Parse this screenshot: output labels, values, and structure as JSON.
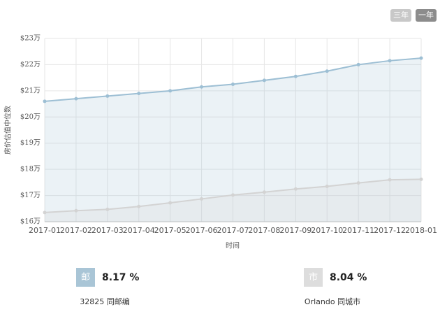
{
  "chart_data": {
    "type": "area",
    "ylabel": "房价估值中位数",
    "xlabel": "时间",
    "categories": [
      "2017-01",
      "2017-02",
      "2017-03",
      "2017-04",
      "2017-05",
      "2017-06",
      "2017-07",
      "2017-08",
      "2017-09",
      "2017-10",
      "2017-11",
      "2017-12",
      "2018-01"
    ],
    "series": [
      {
        "name": "32825 同邮编",
        "color": "#9dbfd4",
        "values": [
          20.6,
          20.7,
          20.8,
          20.9,
          21.0,
          21.15,
          21.25,
          21.4,
          21.55,
          21.75,
          22.0,
          22.15,
          22.25
        ]
      },
      {
        "name": "Orlando 同城市",
        "color": "#d3d3d3",
        "values": [
          16.35,
          16.42,
          16.47,
          16.58,
          16.72,
          16.87,
          17.02,
          17.13,
          17.25,
          17.35,
          17.48,
          17.6,
          17.62
        ]
      }
    ],
    "ylim": [
      16,
      23
    ],
    "yticks": [
      {
        "value": 16,
        "label": "$16万"
      },
      {
        "value": 17,
        "label": "$17万"
      },
      {
        "value": 18,
        "label": "$18万"
      },
      {
        "value": 19,
        "label": "$19万"
      },
      {
        "value": 20,
        "label": "$20万"
      },
      {
        "value": 21,
        "label": "$21万"
      },
      {
        "value": 22,
        "label": "$22万"
      },
      {
        "value": 23,
        "label": "$23万"
      }
    ],
    "grid": true
  },
  "buttons": [
    "三年",
    "一年"
  ],
  "stats": [
    {
      "icon": "邮",
      "value": "8.17 %"
    },
    {
      "icon": "市",
      "value": "8.04 %"
    }
  ]
}
